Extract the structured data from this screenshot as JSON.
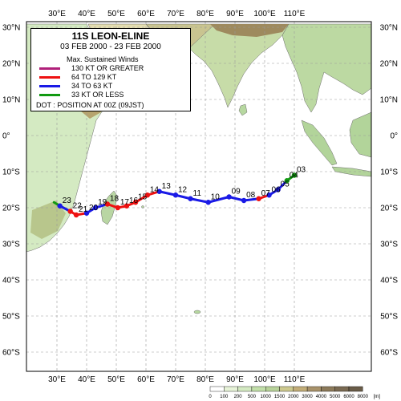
{
  "title": "11S  LEON-ELINE",
  "dates": "03 FEB 2000 - 23 FEB 2000",
  "legend": {
    "heading": "Max. Sustained Winds",
    "items": [
      {
        "label": "130 KT OR GREATER",
        "color": "#b0207a"
      },
      {
        "label": "64  TO 129 KT",
        "color": "#ee1111"
      },
      {
        "label": "34  TO 63 KT",
        "color": "#1a1ae6"
      },
      {
        "label": "33  KT OR LESS",
        "color": "#119911"
      }
    ],
    "dot_note": "DOT : POSITION AT 00Z (09JST)"
  },
  "lon_labels": [
    "30°E",
    "40°E",
    "50°E",
    "60°E",
    "70°E",
    "80°E",
    "90°E",
    "100°E",
    "110°E"
  ],
  "lat_labels": [
    "30°N",
    "20°N",
    "10°N",
    "0°",
    "10°S",
    "20°S",
    "30°S",
    "40°S",
    "50°S",
    "60°S"
  ],
  "scale": {
    "unit": "[m]",
    "ticks": [
      "0",
      "100",
      "200",
      "500",
      "1000",
      "1500",
      "2000",
      "3000",
      "4000",
      "5000",
      "6000",
      "8000"
    ]
  },
  "track": [
    {
      "day": "03",
      "lon": 110.0,
      "lat": -11.0,
      "cat": "green"
    },
    {
      "day": "04",
      "lon": 107.5,
      "lat": -12.5,
      "cat": "green"
    },
    {
      "day": "05",
      "lon": 104.5,
      "lat": -15.0,
      "cat": "blue"
    },
    {
      "day": "06",
      "lon": 101.5,
      "lat": -16.5,
      "cat": "blue"
    },
    {
      "day": "07",
      "lon": 98.0,
      "lat": -17.5,
      "cat": "red"
    },
    {
      "day": "08",
      "lon": 93.0,
      "lat": -18.0,
      "cat": "blue"
    },
    {
      "day": "09",
      "lon": 88.0,
      "lat": -17.0,
      "cat": "blue"
    },
    {
      "day": "10",
      "lon": 81.0,
      "lat": -18.5,
      "cat": "blue"
    },
    {
      "day": "11",
      "lon": 75.0,
      "lat": -17.5,
      "cat": "blue"
    },
    {
      "day": "12",
      "lon": 70.0,
      "lat": -16.5,
      "cat": "blue"
    },
    {
      "day": "13",
      "lon": 64.5,
      "lat": -15.5,
      "cat": "blue"
    },
    {
      "day": "14",
      "lon": 60.5,
      "lat": -16.5,
      "cat": "red"
    },
    {
      "day": "15",
      "lon": 56.5,
      "lat": -18.5,
      "cat": "red"
    },
    {
      "day": "16",
      "lon": 53.5,
      "lat": -19.5,
      "cat": "red"
    },
    {
      "day": "17",
      "lon": 50.5,
      "lat": -20.0,
      "cat": "red"
    },
    {
      "day": "18",
      "lon": 47.0,
      "lat": -19.0,
      "cat": "red"
    },
    {
      "day": "19",
      "lon": 43.0,
      "lat": -20.0,
      "cat": "blue"
    },
    {
      "day": "20",
      "lon": 40.0,
      "lat": -21.5,
      "cat": "blue"
    },
    {
      "day": "21",
      "lon": 36.5,
      "lat": -22.0,
      "cat": "red"
    },
    {
      "day": "22",
      "lon": 34.5,
      "lat": -21.0,
      "cat": "red"
    },
    {
      "day": "23",
      "lon": 31.0,
      "lat": -19.5,
      "cat": "blue"
    }
  ],
  "track_end": {
    "lon": 29.0,
    "lat": -18.5
  },
  "colors": {
    "ocean": "#ffffff",
    "land_low": "#d9eec9",
    "land_mid": "#b7d8a0",
    "land_high": "#c7c180",
    "land_peak": "#a89268",
    "green": "#119911",
    "blue": "#1a1ae6",
    "red": "#ee1111"
  }
}
